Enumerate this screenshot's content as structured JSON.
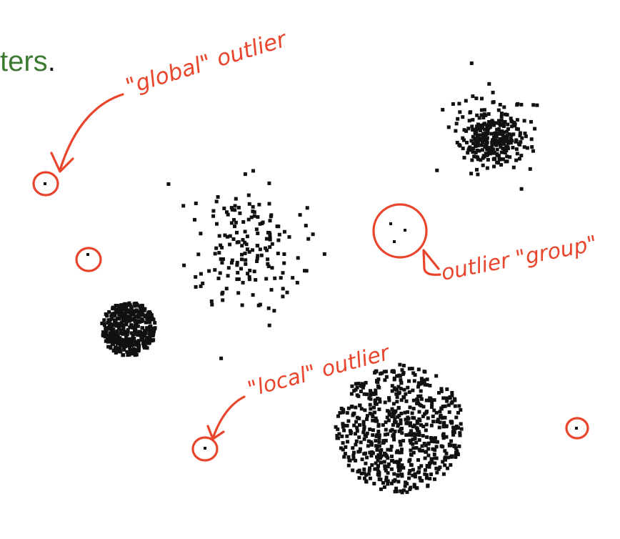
{
  "title_fragment": {
    "text": "ters",
    "punct": "."
  },
  "annotations": {
    "global": "\"global\" outlier",
    "group": "outlier \"group\"",
    "local": "\"local\" outlier"
  },
  "colors": {
    "ink": "#111111",
    "annotation": "#e8452c",
    "title": "#3d7a32",
    "background": "#ffffff"
  },
  "clusters": [
    {
      "name": "dense-small-cluster",
      "points": 320,
      "density": "very dense"
    },
    {
      "name": "sparse-medium-cluster",
      "points": 170,
      "density": "sparse"
    },
    {
      "name": "dense-round-cluster",
      "points": 420,
      "density": "very dense"
    },
    {
      "name": "large-medium-density-cluster",
      "points": 650,
      "density": "medium"
    }
  ],
  "outliers": [
    {
      "name": "global-outlier",
      "circled": true
    },
    {
      "name": "outlier",
      "circled": true
    },
    {
      "name": "local-outlier",
      "circled": true
    },
    {
      "name": "outlier",
      "circled": true
    },
    {
      "name": "outlier-group",
      "points": 3,
      "circled": true
    }
  ]
}
